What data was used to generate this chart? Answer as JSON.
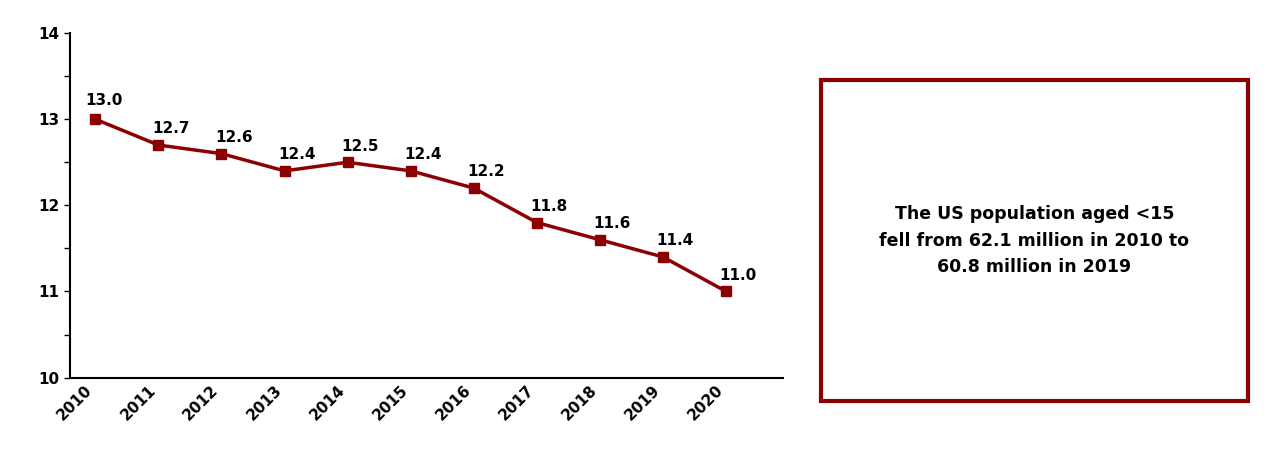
{
  "years": [
    2010,
    2011,
    2012,
    2013,
    2014,
    2015,
    2016,
    2017,
    2018,
    2019,
    2020
  ],
  "values": [
    13.0,
    12.7,
    12.6,
    12.4,
    12.5,
    12.4,
    12.2,
    11.8,
    11.6,
    11.4,
    11.0
  ],
  "line_color": "#8B0000",
  "marker_color": "#8B0000",
  "ylim": [
    10,
    14
  ],
  "yticks": [
    10,
    10.5,
    11,
    11.5,
    12,
    12.5,
    13,
    13.5,
    14
  ],
  "ytick_labels": [
    "10",
    "",
    "11",
    "",
    "12",
    "",
    "13",
    "",
    "14"
  ],
  "annotation_labels": [
    "13.0",
    "12.7",
    "12.6",
    "12.4",
    "12.5",
    "12.4",
    "12.2",
    "11.8",
    "11.6",
    "11.4",
    "11.0"
  ],
  "box_text": "The US population aged <15\nfell from 62.1 million in 2010 to\n60.8 million in 2019",
  "box_border_color": "#8B0000",
  "background_color": "#ffffff",
  "tick_fontsize": 11,
  "annotation_fontsize": 11
}
